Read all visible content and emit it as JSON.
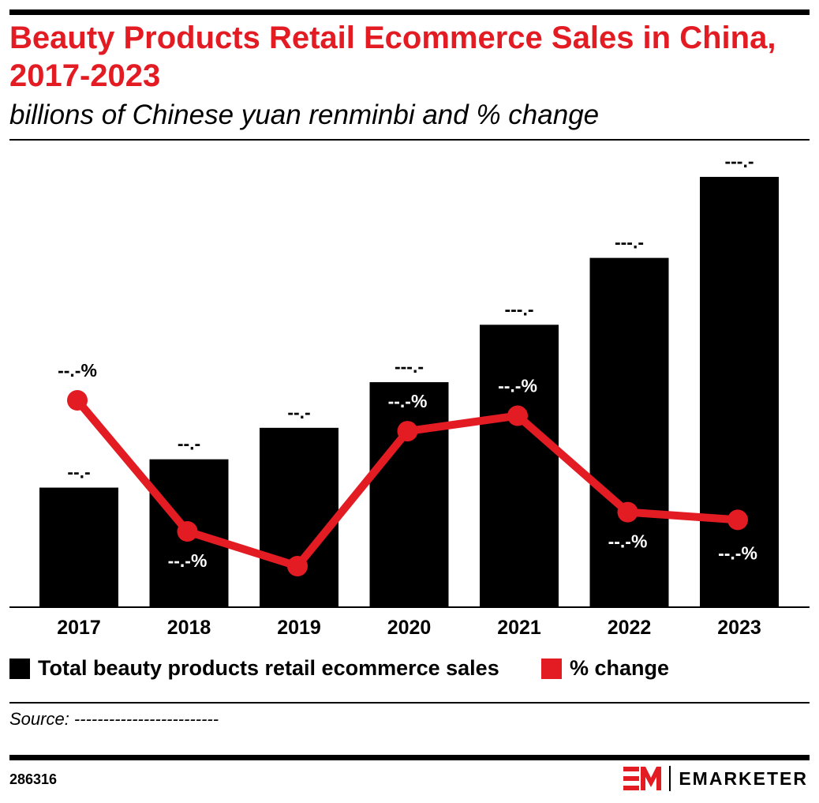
{
  "header": {
    "title": "Beauty Products Retail Ecommerce Sales in China, 2017-2023",
    "subtitle": "billions of Chinese yuan renminbi and % change"
  },
  "colors": {
    "bar": "#000000",
    "line": "#e31b23",
    "title": "#e31b23"
  },
  "chart_data": {
    "type": "bar",
    "categories": [
      "2017",
      "2018",
      "2019",
      "2020",
      "2021",
      "2022",
      "2023"
    ],
    "series": [
      {
        "name": "Total beauty products retail ecommerce sales",
        "type": "bar",
        "values": [
          152,
          188,
          228,
          286,
          359,
          444,
          547
        ],
        "labels": [
          "--.-",
          "--.-",
          "--.-",
          "---.-",
          "---.-",
          "---.-",
          "---.-"
        ]
      },
      {
        "name": "% change",
        "type": "line",
        "values": [
          35.0,
          18.0,
          13.5,
          31.0,
          33.0,
          20.5,
          19.5
        ],
        "labels": [
          "--.-%",
          "--.-%",
          "--.-%",
          "--.-%",
          "--.-%",
          "--.-%",
          "--.-%"
        ]
      }
    ],
    "grid": false
  },
  "legend": {
    "items": [
      {
        "label": "Total beauty products retail ecommerce sales"
      },
      {
        "label": "% change"
      }
    ]
  },
  "footer": {
    "source": "Source: -------------------------",
    "chart_id": "286316",
    "brand": "EMARKETER"
  }
}
